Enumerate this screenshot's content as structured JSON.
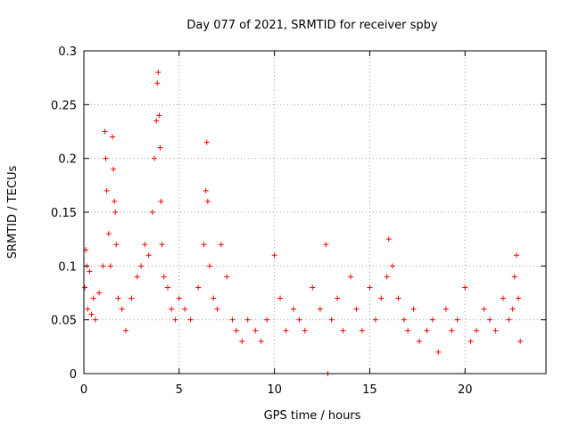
{
  "chart_data": {
    "type": "scatter",
    "title": "Day 077 of 2021, SRMTID for receiver spby",
    "xlabel": "GPS time / hours",
    "ylabel": "SRMTID / TECUs",
    "xlim": [
      0,
      24.25
    ],
    "ylim": [
      0,
      0.3
    ],
    "xticks": [
      0,
      5,
      10,
      15,
      20
    ],
    "xtick_labels": [
      "0",
      "5",
      "10",
      "15",
      "20"
    ],
    "yticks": [
      0,
      0.05,
      0.1,
      0.15,
      0.2,
      0.25,
      0.3
    ],
    "ytick_labels": [
      "0",
      "0.05",
      "0.1",
      "0.15",
      "0.2",
      "0.25",
      "0.3"
    ],
    "grid": true,
    "marker": "+",
    "color": "#ff0000",
    "series": [
      {
        "name": "SRMTID",
        "x": [
          0.05,
          0.1,
          0.15,
          0.2,
          0.3,
          0.4,
          0.5,
          0.6,
          0.8,
          1.0,
          1.1,
          1.15,
          1.2,
          1.3,
          1.4,
          1.5,
          1.55,
          1.6,
          1.65,
          1.7,
          1.8,
          2.0,
          2.2,
          2.5,
          2.8,
          3.0,
          3.2,
          3.4,
          3.6,
          3.7,
          3.8,
          3.85,
          3.9,
          3.95,
          4.0,
          4.05,
          4.1,
          4.2,
          4.4,
          4.6,
          4.8,
          5.0,
          5.3,
          5.6,
          6.0,
          6.3,
          6.4,
          6.45,
          6.5,
          6.6,
          6.8,
          7.0,
          7.2,
          7.5,
          7.8,
          8.0,
          8.3,
          8.6,
          9.0,
          9.3,
          9.6,
          10.0,
          10.3,
          10.6,
          11.0,
          11.3,
          11.6,
          12.0,
          12.4,
          12.7,
          12.8,
          13.0,
          13.3,
          13.6,
          14.0,
          14.3,
          14.6,
          15.0,
          15.3,
          15.6,
          15.9,
          16.0,
          16.2,
          16.5,
          16.8,
          17.0,
          17.3,
          17.6,
          18.0,
          18.3,
          18.6,
          19.0,
          19.3,
          19.6,
          20.0,
          20.3,
          20.6,
          21.0,
          21.3,
          21.6,
          22.0,
          22.3,
          22.5,
          22.6,
          22.7,
          22.8,
          22.9
        ],
        "y": [
          0.08,
          0.115,
          0.1,
          0.06,
          0.095,
          0.055,
          0.07,
          0.05,
          0.075,
          0.1,
          0.225,
          0.2,
          0.17,
          0.13,
          0.1,
          0.22,
          0.19,
          0.16,
          0.15,
          0.12,
          0.07,
          0.06,
          0.04,
          0.07,
          0.09,
          0.1,
          0.12,
          0.11,
          0.15,
          0.2,
          0.235,
          0.27,
          0.28,
          0.24,
          0.21,
          0.16,
          0.12,
          0.09,
          0.08,
          0.06,
          0.05,
          0.07,
          0.06,
          0.05,
          0.08,
          0.12,
          0.17,
          0.215,
          0.16,
          0.1,
          0.07,
          0.06,
          0.12,
          0.09,
          0.05,
          0.04,
          0.03,
          0.05,
          0.04,
          0.03,
          0.05,
          0.11,
          0.07,
          0.04,
          0.06,
          0.05,
          0.04,
          0.08,
          0.06,
          0.12,
          0.0,
          0.05,
          0.07,
          0.04,
          0.09,
          0.06,
          0.04,
          0.08,
          0.05,
          0.07,
          0.09,
          0.125,
          0.1,
          0.07,
          0.05,
          0.04,
          0.06,
          0.03,
          0.04,
          0.05,
          0.02,
          0.06,
          0.04,
          0.05,
          0.08,
          0.03,
          0.04,
          0.06,
          0.05,
          0.04,
          0.07,
          0.05,
          0.06,
          0.09,
          0.11,
          0.07,
          0.03
        ]
      }
    ]
  }
}
